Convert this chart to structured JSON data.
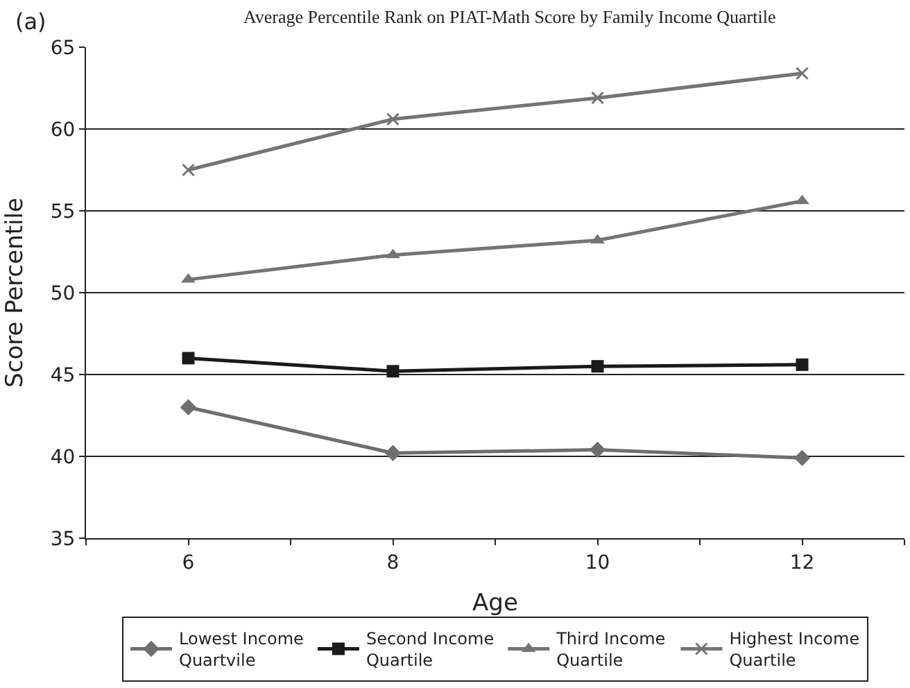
{
  "chart_data": {
    "type": "line",
    "title": "Average Percentile Rank on PIAT-Math Score by Family Income Quartile",
    "xlabel": "Age",
    "ylabel": "Score Percentile",
    "annotations": [
      "(a)"
    ],
    "x": [
      6,
      8,
      10,
      12
    ],
    "series": [
      {
        "name": "Lowest Income Quartvile",
        "color": "#6e6e6e",
        "marker": "diamond",
        "values": [
          43.0,
          40.2,
          40.4,
          39.9
        ]
      },
      {
        "name": "Second Income Quartile",
        "color": "#1a1a1a",
        "marker": "square",
        "values": [
          46.0,
          45.2,
          45.5,
          45.6
        ]
      },
      {
        "name": "Third Income Quartile",
        "color": "#747474",
        "marker": "triangle",
        "values": [
          50.8,
          52.3,
          53.2,
          55.6
        ]
      },
      {
        "name": "Highest Income Quartile",
        "color": "#747474",
        "marker": "cross",
        "values": [
          57.5,
          60.6,
          61.9,
          63.4
        ]
      }
    ],
    "xlim": [
      5,
      13
    ],
    "xticks": [
      {
        "value": 5,
        "label": null
      },
      6,
      {
        "value": 7,
        "label": null
      },
      8,
      {
        "value": 9,
        "label": null
      },
      10,
      {
        "value": 11,
        "label": null
      },
      12,
      {
        "value": 13,
        "label": null
      }
    ],
    "ylim": [
      35,
      65
    ],
    "yticks": [
      35,
      40,
      45,
      50,
      55,
      60,
      65
    ],
    "grid": "y",
    "legend": "bottom",
    "line_style": "solid"
  }
}
